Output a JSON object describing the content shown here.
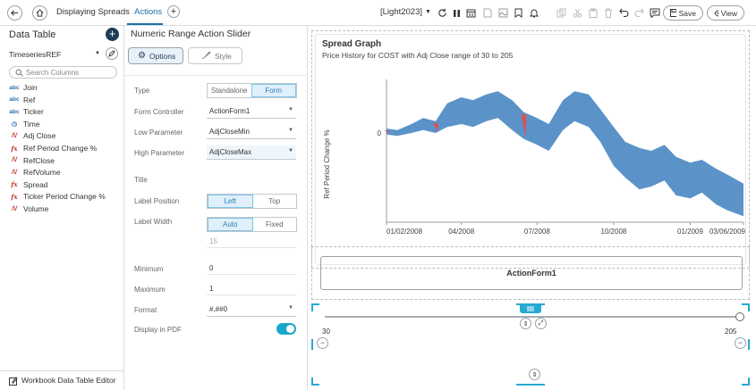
{
  "toolbar": {
    "workbook_tab": "Displaying Spreads",
    "actions_tab": "Actions",
    "theme": "[Light2023]",
    "save_label": "Save",
    "view_label": "View"
  },
  "data_table": {
    "title": "Data Table",
    "table_name": "TimeseriesREF",
    "search_placeholder": "Search Columns",
    "columns": [
      {
        "type": "abc",
        "name": "Join"
      },
      {
        "type": "abc",
        "name": "Ref"
      },
      {
        "type": "abc",
        "name": "Ticker"
      },
      {
        "type": "time",
        "name": "Time"
      },
      {
        "type": "num",
        "name": "Adj Close"
      },
      {
        "type": "fx",
        "name": "Ref Period Change %"
      },
      {
        "type": "num",
        "name": "RefClose"
      },
      {
        "type": "num",
        "name": "RefVolume"
      },
      {
        "type": "fx",
        "name": "Spread"
      },
      {
        "type": "fx",
        "name": "Ticker Period Change %"
      },
      {
        "type": "num",
        "name": "Volume"
      }
    ],
    "footer_label": "Workbook Data Table Editor"
  },
  "settings": {
    "title": "Numeric Range Action Slider",
    "options_tab": "Options",
    "style_tab": "Style",
    "type_label": "Type",
    "type_options": [
      "Standalone",
      "Form"
    ],
    "form_controller_label": "Form Controller",
    "form_controller_value": "ActionForm1",
    "low_param_label": "Low Parameter",
    "low_param_value": "AdjCloseMin",
    "high_param_label": "High Parameter",
    "high_param_value": "AdjCloseMax",
    "title_label": "Title",
    "label_position_label": "Label Position",
    "label_position_options": [
      "Left",
      "Top"
    ],
    "label_width_label": "Label Width",
    "label_width_options": [
      "Auto",
      "Fixed"
    ],
    "label_width_value": "15",
    "minimum_label": "Minimum",
    "minimum_value": "0",
    "maximum_label": "Maximum",
    "maximum_value": "1",
    "format_label": "Format",
    "format_value": "#,##0",
    "display_pdf_label": "Display in PDF",
    "display_pdf_on": true
  },
  "chart_data": {
    "type": "area",
    "title": "Spread Graph",
    "subtitle": "Price History for COST with Adj Close range of 30 to 205",
    "ylabel": "Ref Period Change %",
    "y_tick": "0",
    "x_ticks": [
      "01/02/2008",
      "04/2008",
      "07/2008",
      "10/2008",
      "01/2009",
      "03/06/2009"
    ],
    "x": [
      "2008-01-02",
      "2008-01-15",
      "2008-02-01",
      "2008-02-15",
      "2008-03-01",
      "2008-03-15",
      "2008-04-01",
      "2008-04-15",
      "2008-05-01",
      "2008-05-15",
      "2008-06-01",
      "2008-06-15",
      "2008-07-01",
      "2008-07-15",
      "2008-08-01",
      "2008-08-15",
      "2008-09-01",
      "2008-09-15",
      "2008-10-01",
      "2008-10-15",
      "2008-11-01",
      "2008-11-15",
      "2008-12-01",
      "2008-12-15",
      "2009-01-01",
      "2009-01-15",
      "2009-02-01",
      "2009-02-15",
      "2009-03-06"
    ],
    "series": [
      {
        "values_upper": [
          3,
          2,
          6,
          10,
          8,
          20,
          24,
          22,
          26,
          28,
          22,
          14,
          10,
          6,
          22,
          28,
          26,
          16,
          4,
          -6,
          -10,
          -12,
          -8,
          -16,
          -20,
          -18,
          -24,
          -28,
          -34
        ]
      },
      {
        "values_lower": [
          -1,
          -2,
          0,
          2,
          0,
          4,
          6,
          4,
          8,
          10,
          2,
          -4,
          -8,
          -12,
          2,
          8,
          4,
          -6,
          -22,
          -30,
          -38,
          -36,
          -32,
          -42,
          -44,
          -40,
          -48,
          -52,
          -56
        ]
      }
    ],
    "colors": {
      "area": "#5b93c9",
      "negative": "#d9534f"
    }
  },
  "form": {
    "name": "ActionForm1"
  },
  "slider": {
    "min_label": "30",
    "max_label": "205"
  }
}
